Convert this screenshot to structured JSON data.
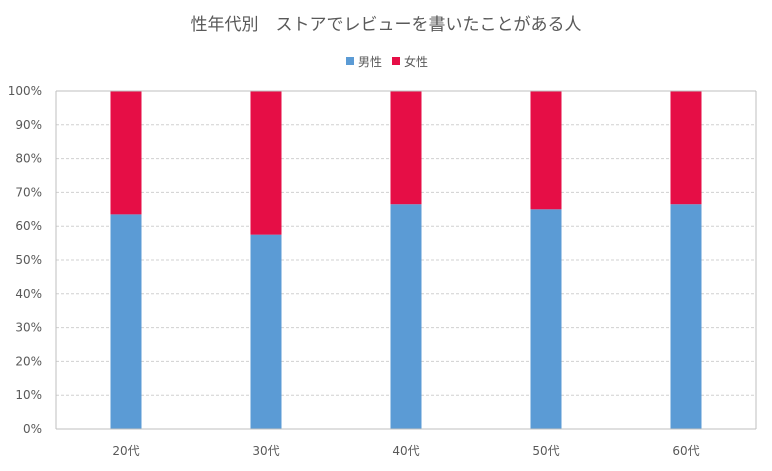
{
  "chart_data": {
    "type": "bar",
    "stacked": "percent",
    "title": "性年代別　ストアでレビューを書いたことがある人",
    "categories": [
      "20代",
      "30代",
      "40代",
      "50代",
      "60代"
    ],
    "series": [
      {
        "name": "男性",
        "color": "#5B9BD5",
        "values": [
          63.5,
          57.5,
          66.5,
          65,
          66.5
        ]
      },
      {
        "name": "女性",
        "color": "#E60E46",
        "values": [
          36.5,
          42.5,
          33.5,
          35,
          33.5
        ]
      }
    ],
    "ylim": [
      0,
      100
    ],
    "yticks": [
      "0%",
      "10%",
      "20%",
      "30%",
      "40%",
      "50%",
      "60%",
      "70%",
      "80%",
      "90%",
      "100%"
    ],
    "grid": true,
    "legend_position": "top-center"
  }
}
